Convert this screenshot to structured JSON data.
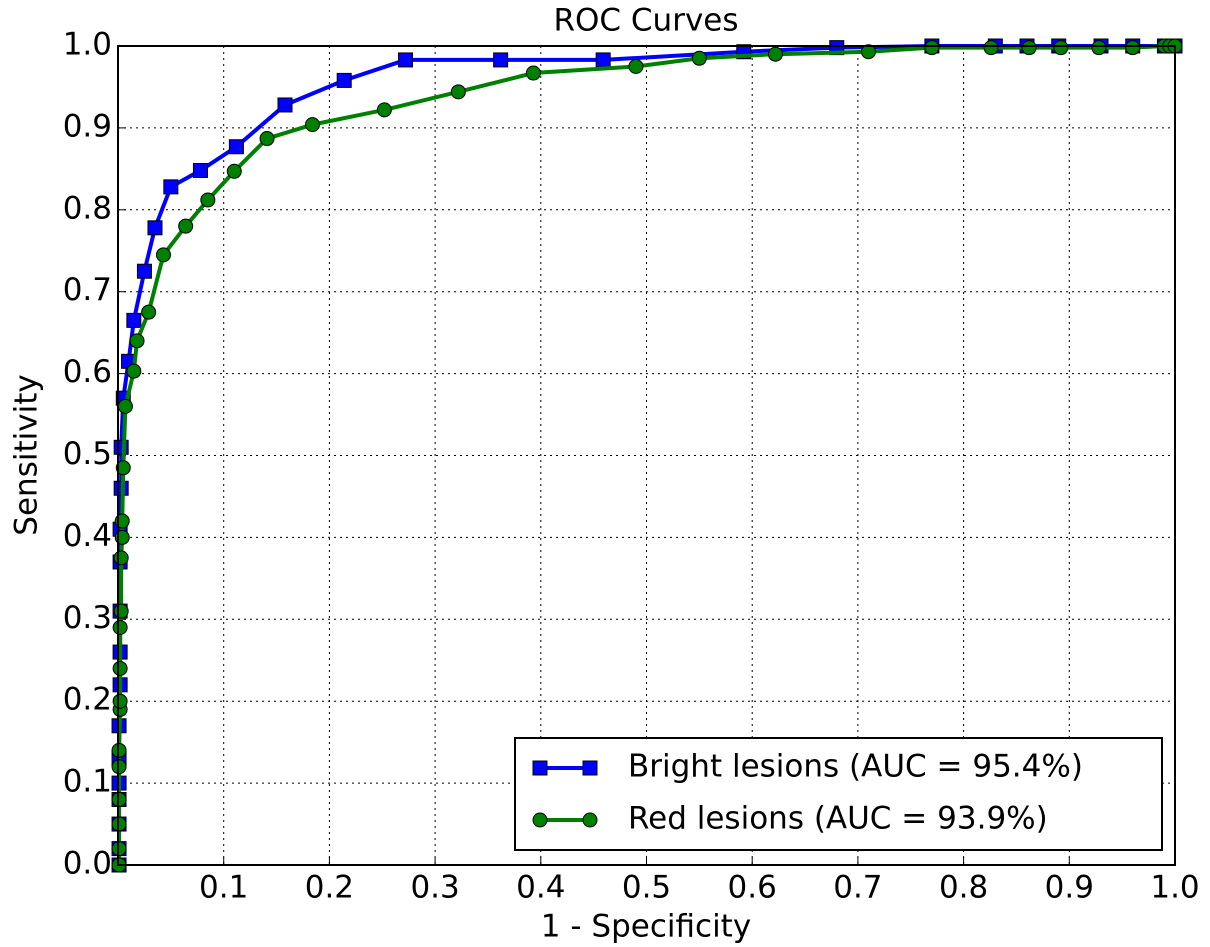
{
  "chart_data": {
    "type": "line",
    "title": "ROC Curves",
    "x_label": "1 - Specificity",
    "y_label": "Sensitivity",
    "xlim": [
      0,
      1
    ],
    "ylim": [
      0,
      1
    ],
    "xticks": [
      0.1,
      0.2,
      0.3,
      0.4,
      0.5,
      0.6,
      0.7,
      0.8,
      0.9,
      {
        "value": 1,
        "label": "1.0"
      }
    ],
    "yticks": [
      {
        "value": 0,
        "label": "0.0"
      },
      0.1,
      0.2,
      0.3,
      0.4,
      0.5,
      0.6,
      0.7,
      0.8,
      0.9,
      {
        "value": 1,
        "label": "1.0"
      }
    ],
    "grid": true,
    "legend": "lower right",
    "series": [
      {
        "name": "Bright lesions (AUC = 95.4%)",
        "color": "#0000ff",
        "marker": "square",
        "x": [
          0.001,
          0.001,
          0.001,
          0.001,
          0.001,
          0.001,
          0.001,
          0.002,
          0.002,
          0.002,
          0.002,
          0.002,
          0.003,
          0.003,
          0.005,
          0.01,
          0.015,
          0.025,
          0.035,
          0.05,
          0.078,
          0.112,
          0.158,
          0.214,
          0.272,
          0.362,
          0.459,
          0.592,
          0.68,
          0.77,
          0.83,
          0.86,
          0.89,
          0.93,
          0.96,
          0.99,
          0.995,
          1
        ],
        "values": [
          0,
          0.02,
          0.05,
          0.08,
          0.1,
          0.13,
          0.17,
          0.22,
          0.26,
          0.31,
          0.37,
          0.41,
          0.46,
          0.51,
          0.57,
          0.615,
          0.665,
          0.725,
          0.778,
          0.828,
          0.848,
          0.877,
          0.928,
          0.958,
          0.983,
          0.983,
          0.983,
          0.993,
          0.998,
          1,
          1,
          1,
          1,
          1,
          1,
          1,
          1,
          1
        ]
      },
      {
        "name": "Red lesions (AUC = 93.9%)",
        "color": "#008000",
        "marker": "circle",
        "x": [
          0.001,
          0.001,
          0.001,
          0.001,
          0.001,
          0.001,
          0.002,
          0.002,
          0.002,
          0.002,
          0.003,
          0.003,
          0.004,
          0.004,
          0.005,
          0.007,
          0.015,
          0.018,
          0.029,
          0.043,
          0.064,
          0.085,
          0.11,
          0.141,
          0.184,
          0.252,
          0.322,
          0.393,
          0.49,
          0.55,
          0.622,
          0.71,
          0.77,
          0.826,
          0.862,
          0.892,
          0.928,
          0.96,
          0.99,
          0.995,
          1
        ],
        "values": [
          0,
          0.02,
          0.05,
          0.08,
          0.12,
          0.14,
          0.19,
          0.2,
          0.24,
          0.29,
          0.31,
          0.375,
          0.4,
          0.42,
          0.485,
          0.56,
          0.603,
          0.64,
          0.675,
          0.745,
          0.78,
          0.812,
          0.847,
          0.887,
          0.904,
          0.922,
          0.944,
          0.967,
          0.975,
          0.985,
          0.99,
          0.993,
          0.998,
          0.998,
          0.998,
          0.998,
          0.998,
          0.998,
          1,
          1,
          1
        ]
      }
    ]
  }
}
